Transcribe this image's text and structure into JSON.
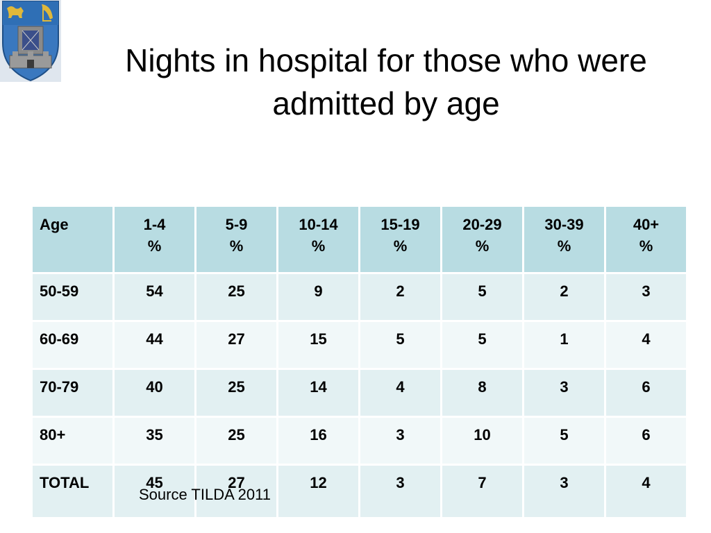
{
  "title_line1": "Nights in hospital for those who were",
  "title_line2": "admitted by age",
  "table": {
    "headers": [
      {
        "top": "Age",
        "bottom": ""
      },
      {
        "top": "1-4",
        "bottom": "%"
      },
      {
        "top": "5-9",
        "bottom": "%"
      },
      {
        "top": "10-14",
        "bottom": "%"
      },
      {
        "top": "15-19",
        "bottom": "%"
      },
      {
        "top": "20-29",
        "bottom": "%"
      },
      {
        "top": "30-39",
        "bottom": "%"
      },
      {
        "top": "40+",
        "bottom": "%"
      }
    ],
    "rows": [
      [
        "50-59",
        "54",
        "25",
        "9",
        "2",
        "5",
        "2",
        "3"
      ],
      [
        "60-69",
        "44",
        "27",
        "15",
        "5",
        "5",
        "1",
        "4"
      ],
      [
        "70-79",
        "40",
        "25",
        "14",
        "4",
        "8",
        "3",
        "6"
      ],
      [
        "80+",
        "35",
        "25",
        "16",
        "3",
        "10",
        "5",
        "6"
      ],
      [
        "TOTAL",
        "45",
        "27",
        "12",
        "3",
        "7",
        "3",
        "4"
      ]
    ]
  },
  "source": "Source TILDA 2011",
  "colors": {
    "header_fill": "#b8dce2",
    "row_fill_a": "#e2f0f2",
    "row_fill_b": "#f1f8f9",
    "crest_blue": "#2f6fb5",
    "crest_gold": "#e0b83a"
  },
  "logo": {
    "icon": "university-crest-icon"
  }
}
